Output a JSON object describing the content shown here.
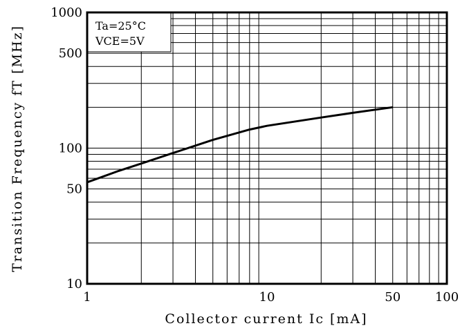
{
  "chart_data": {
    "type": "line",
    "title": "",
    "xlabel": "Collector current Ic [mA]",
    "ylabel": "Transition Frequency fT [MHz]",
    "x_scale": "log",
    "y_scale": "log",
    "xlim": [
      1,
      100
    ],
    "ylim": [
      10,
      1000
    ],
    "grid": true,
    "x_ticks": [
      {
        "value": 1,
        "label": "1"
      },
      {
        "value": 10,
        "label": "10"
      },
      {
        "value": 50,
        "label": "50"
      },
      {
        "value": 100,
        "label": "100"
      }
    ],
    "y_ticks": [
      {
        "value": 10,
        "label": "10"
      },
      {
        "value": 50,
        "label": "50"
      },
      {
        "value": 100,
        "label": "100"
      },
      {
        "value": 500,
        "label": "500"
      },
      {
        "value": 1000,
        "label": "1000"
      }
    ],
    "series": [
      {
        "x": [
          1,
          1.5,
          2,
          3,
          5,
          8,
          10,
          20,
          30,
          50
        ],
        "y": [
          56,
          68,
          77,
          92,
          115,
          137,
          146,
          168,
          182,
          200
        ]
      }
    ],
    "annotations": [
      "Ta=25°C",
      "VCE=5V"
    ]
  }
}
